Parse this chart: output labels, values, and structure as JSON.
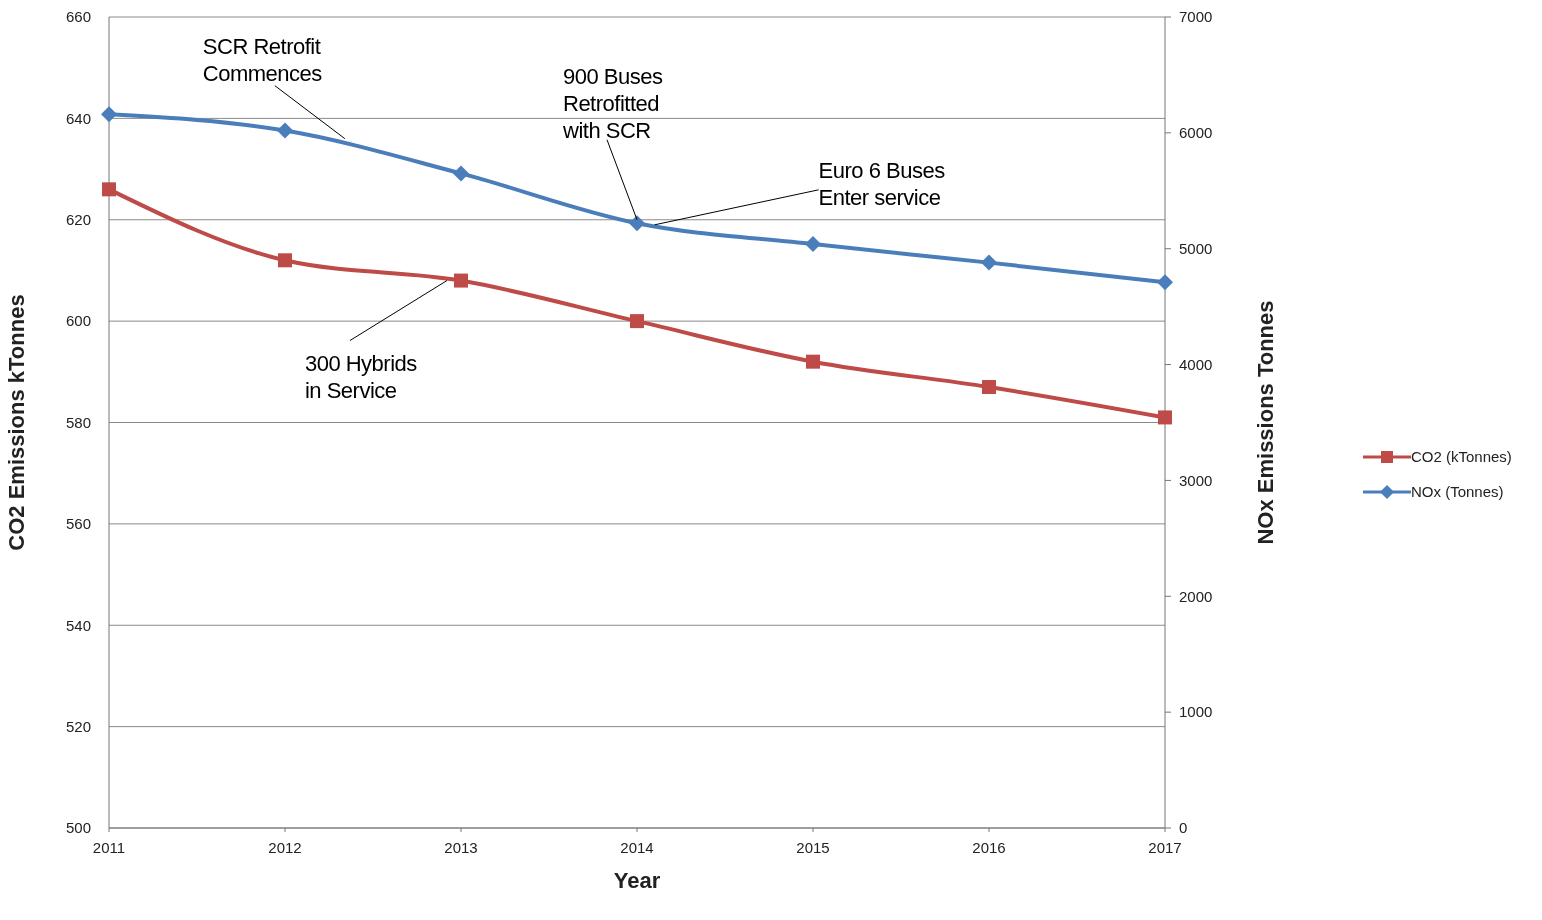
{
  "chart_data": {
    "type": "line",
    "xlabel": "Year",
    "ylabel": "CO2 Emissions kTonnes",
    "y2label": "NOx Emissions Tonnes",
    "x": [
      2011,
      2012,
      2013,
      2014,
      2015,
      2016,
      2017
    ],
    "xlim": [
      2011,
      2017
    ],
    "xticks": [
      2011,
      2012,
      2013,
      2014,
      2015,
      2016,
      2017
    ],
    "ylim": [
      500,
      660
    ],
    "yticks": [
      500,
      520,
      540,
      560,
      580,
      600,
      620,
      640,
      660
    ],
    "y2lim": [
      0,
      7000
    ],
    "y2ticks": [
      0,
      1000,
      2000,
      3000,
      4000,
      5000,
      6000,
      7000
    ],
    "grid": "y",
    "legend": "right",
    "series": [
      {
        "name": "CO2 (kTonnes)",
        "color": "#be4b48",
        "marker": "square",
        "values": [
          626,
          612,
          608,
          600,
          592,
          587,
          581
        ]
      },
      {
        "name": "NOx (Tonnes)",
        "color": "#4a7ebb",
        "marker": "diamond",
        "axis": "y2",
        "values": [
          6160,
          6020,
          5650,
          5220,
          5040,
          4880,
          4710
        ]
      }
    ],
    "annotations": [
      {
        "text": "SCR Retrofit\nCommences",
        "x": 2012.34,
        "y": 636
      },
      {
        "text": "900 Buses\nRetrofitted\nwith SCR",
        "x": 2014,
        "y": 620
      },
      {
        "text": "Euro 6 Buses\nEnter service",
        "x": 2014.1,
        "y": 619
      },
      {
        "text": "300 Hybrids\nin Service",
        "x": 2012.92,
        "y": 608
      }
    ]
  }
}
